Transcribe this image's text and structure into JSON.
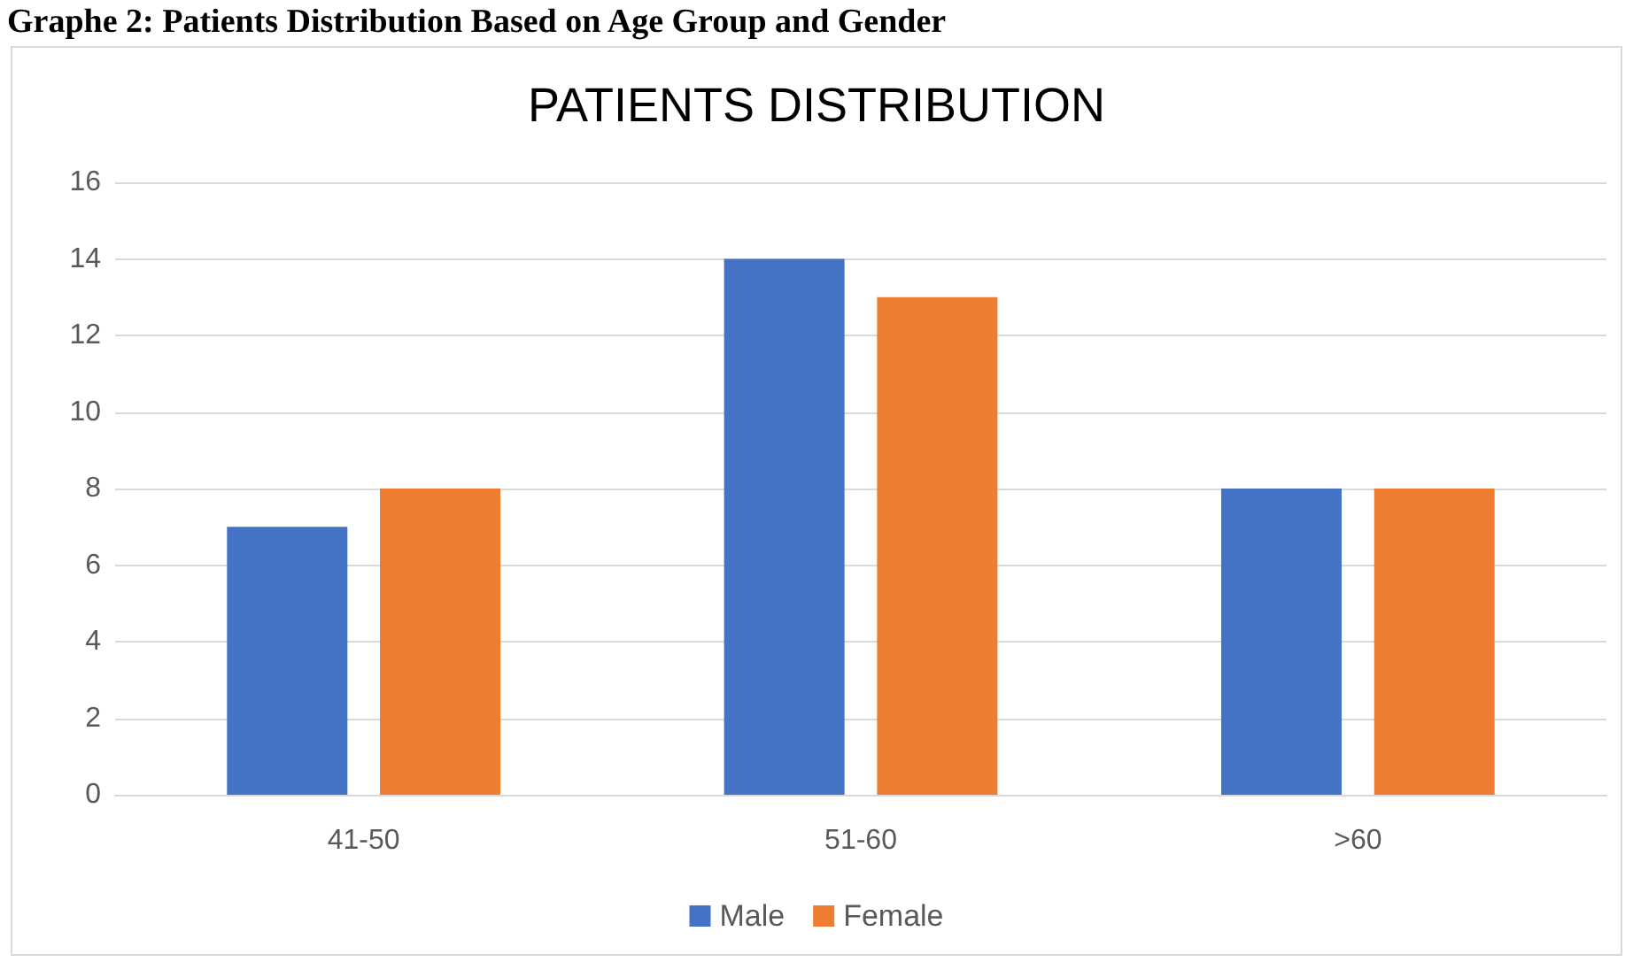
{
  "chart_data": {
    "type": "bar",
    "title": "Graphe 2: Patients Distribution Based on Age Group and Gender",
    "subtitle": "PATIENTS DISTRIBUTION",
    "categories": [
      "41-50",
      "51-60",
      ">60"
    ],
    "series": [
      {
        "name": "Male",
        "color": "#4472c4",
        "values": [
          7,
          14,
          8
        ]
      },
      {
        "name": "Female",
        "color": "#ed7d31",
        "values": [
          8,
          13,
          8
        ]
      }
    ],
    "ylim": [
      0,
      16
    ],
    "yticks": [
      0,
      2,
      4,
      6,
      8,
      10,
      12,
      14,
      16
    ],
    "grid": "y",
    "legend": "bottom"
  }
}
